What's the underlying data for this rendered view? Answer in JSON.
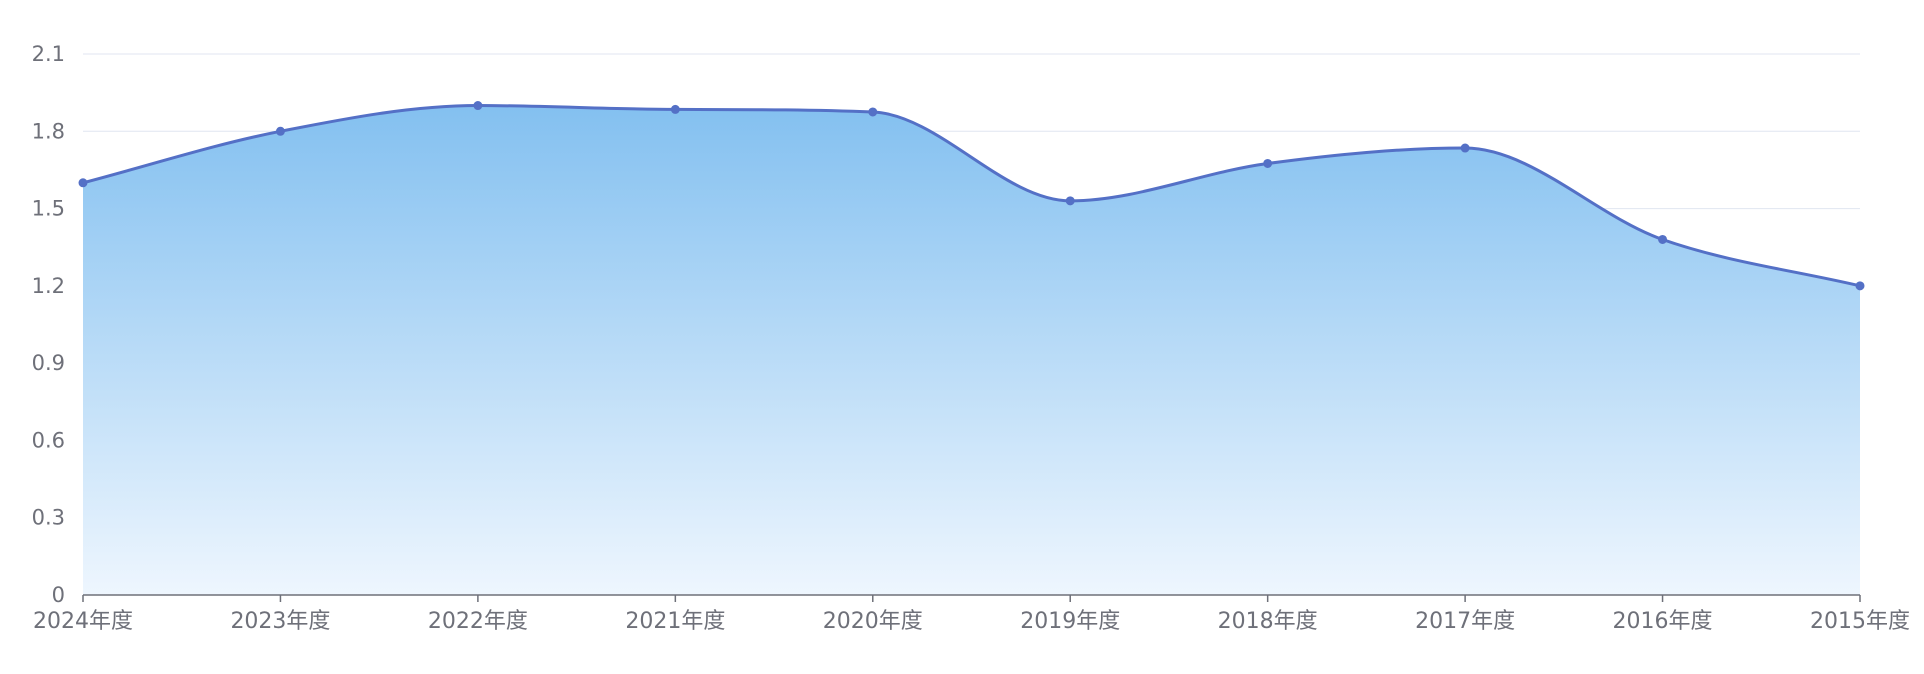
{
  "chart_data": {
    "type": "area",
    "title": "",
    "xlabel": "",
    "ylabel": "",
    "categories": [
      "2024年度",
      "2023年度",
      "2022年度",
      "2021年度",
      "2020年度",
      "2019年度",
      "2018年度",
      "2017年度",
      "2016年度",
      "2015年度"
    ],
    "values": [
      1.6,
      1.8,
      1.9,
      1.885,
      1.875,
      1.53,
      1.675,
      1.735,
      1.38,
      1.2
    ],
    "ylim": [
      0,
      2.1
    ],
    "yticks": [
      "0",
      "0.3",
      "0.6",
      "0.9",
      "1.2",
      "1.5",
      "1.8",
      "2.1"
    ],
    "grid": true,
    "smooth": true,
    "colors": {
      "line": "#5470c6",
      "area_top": "#83c0f0",
      "area_bottom": "#eef6fe",
      "grid": "#e0e6f1",
      "axis": "#6e7079",
      "label": "#6e7079"
    }
  }
}
